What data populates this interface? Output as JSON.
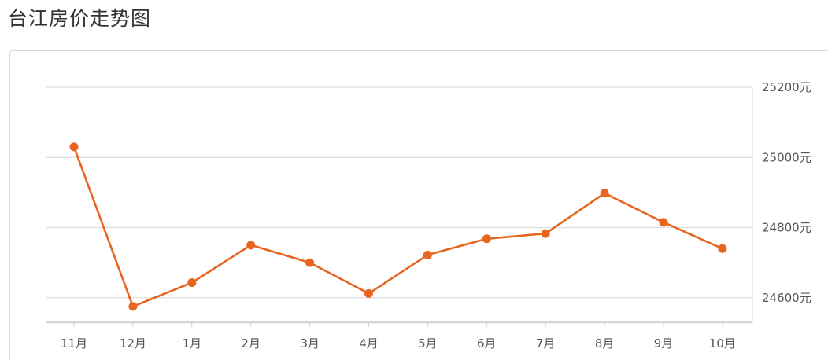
{
  "title": "台江房价走势图",
  "chart_data": {
    "type": "line",
    "categories": [
      "11月",
      "12月",
      "1月",
      "2月",
      "3月",
      "4月",
      "5月",
      "6月",
      "7月",
      "8月",
      "9月",
      "10月"
    ],
    "series": [
      {
        "values": [
          25030,
          24575,
          24643,
          24750,
          24700,
          24612,
          24722,
          24768,
          24783,
          24898,
          24815,
          24740
        ]
      }
    ],
    "y_ticks": [
      "24600元",
      "24800元",
      "25000元",
      "25200元"
    ],
    "y_tick_values": [
      24600,
      24800,
      25000,
      25200
    ],
    "ylim": [
      24530,
      25200
    ],
    "grid": true,
    "y_axis_side": "right",
    "line_color": "#e8651f"
  }
}
